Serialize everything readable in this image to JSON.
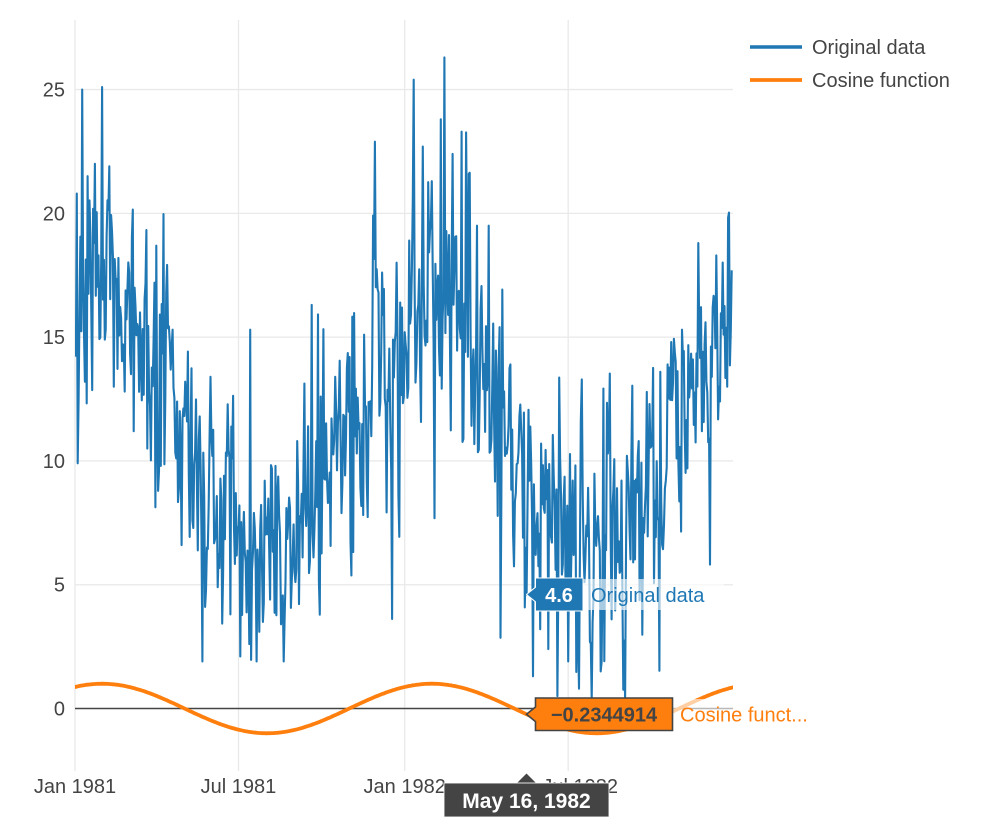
{
  "style": {
    "background": "#ffffff",
    "grid_color": "#e9e9e9",
    "zero_line_color": "#444444",
    "axis_text_color": "#444444",
    "hover_name_bg": "rgba(255,255,255,0.62)"
  },
  "legend": {
    "position": "top-right",
    "items": [
      {
        "label": "Original data",
        "color": "#1f77b4"
      },
      {
        "label": "Cosine function",
        "color": "#ff7f0e"
      }
    ]
  },
  "chart_data": {
    "type": "line",
    "title": "",
    "xlabel": "",
    "ylabel": "",
    "grid": true,
    "x_tick_labels": [
      "Jan 1981",
      "Jul 1981",
      "Jan 1982",
      "Jul 1982"
    ],
    "y_ticks": [
      0,
      5,
      10,
      15,
      20,
      25
    ],
    "ylim": [
      -2.55,
      27.8
    ],
    "series": [
      {
        "name": "Original data",
        "color": "#1f77b4",
        "line_width": 2.1,
        "kind": "noisy-seasonal-daily",
        "generator": {
          "n_days": 728,
          "seasonal_mean": 11.3,
          "seasonal_amplitude": 5.0,
          "seasonal_peak_day": 25,
          "period_days": 365,
          "ar_coeff": 0.45,
          "noise_sd": 2.1,
          "spike_prob": 0.05,
          "spike_min": 3.0,
          "spike_max": 7.0,
          "dip_prob": 0.045,
          "dip_min": 2.5,
          "dip_max": 6.0,
          "clamp_min_first_winter": 1.9,
          "first_winter_end_day": 330,
          "clamp_min": 0.35,
          "clamp_max": 26.4,
          "seed": 7
        },
        "key_points": [
          [
            0,
            14.8
          ],
          [
            2,
            20.8
          ],
          [
            5,
            16.2
          ],
          [
            8,
            25.0
          ],
          [
            11,
            13.2
          ],
          [
            14,
            21.5
          ],
          [
            18,
            16.0
          ],
          [
            22,
            22.0
          ],
          [
            26,
            18.3
          ],
          [
            30,
            25.1
          ],
          [
            33,
            14.9
          ],
          [
            38,
            21.9
          ],
          [
            43,
            13.0
          ],
          [
            48,
            18.2
          ],
          [
            55,
            12.8
          ],
          [
            60,
            17.6
          ],
          [
            65,
            11.2
          ],
          [
            72,
            16.0
          ],
          [
            80,
            10.5
          ],
          [
            88,
            17.2
          ],
          [
            95,
            9.8
          ],
          [
            100,
            12.5
          ],
          [
            108,
            15.3
          ],
          [
            115,
            8.9
          ],
          [
            122,
            13.2
          ],
          [
            130,
            7.6
          ],
          [
            138,
            11.8
          ],
          [
            146,
            6.5
          ],
          [
            152,
            10.2
          ],
          [
            158,
            4.9
          ],
          [
            165,
            9.4
          ],
          [
            172,
            3.8
          ],
          [
            178,
            8.7
          ],
          [
            183,
            2.1
          ],
          [
            188,
            6.3
          ],
          [
            193,
            2.6
          ],
          [
            198,
            7.9
          ],
          [
            204,
            3.1
          ],
          [
            210,
            9.2
          ],
          [
            216,
            4.4
          ],
          [
            222,
            9.8
          ],
          [
            228,
            3.4
          ],
          [
            234,
            8.1
          ],
          [
            240,
            5.2
          ],
          [
            246,
            10.8
          ],
          [
            252,
            6.1
          ],
          [
            258,
            11.4
          ],
          [
            265,
            7.2
          ],
          [
            272,
            12.6
          ],
          [
            280,
            8.3
          ],
          [
            288,
            13.4
          ],
          [
            296,
            9.1
          ],
          [
            304,
            14.2
          ],
          [
            312,
            10.3
          ],
          [
            320,
            15.1
          ],
          [
            328,
            11.0
          ],
          [
            336,
            16.8
          ],
          [
            344,
            12.2
          ],
          [
            352,
            14.9
          ],
          [
            360,
            16.4
          ],
          [
            365,
            15.2
          ],
          [
            370,
            18.9
          ],
          [
            375,
            25.4
          ],
          [
            380,
            16.3
          ],
          [
            385,
            22.7
          ],
          [
            390,
            14.8
          ],
          [
            395,
            21.3
          ],
          [
            400,
            15.7
          ],
          [
            405,
            23.8
          ],
          [
            409,
            26.3
          ],
          [
            413,
            15.9
          ],
          [
            418,
            22.4
          ],
          [
            424,
            16.8
          ],
          [
            428,
            23.3
          ],
          [
            432,
            14.4
          ],
          [
            436,
            21.6
          ],
          [
            440,
            13.7
          ],
          [
            445,
            19.5
          ],
          [
            452,
            12.9
          ],
          [
            458,
            19.5
          ],
          [
            464,
            11.6
          ],
          [
            470,
            15.4
          ],
          [
            476,
            10.2
          ],
          [
            482,
            13.9
          ],
          [
            488,
            8.7
          ],
          [
            492,
            11.8
          ],
          [
            496,
            6.9
          ],
          [
            500,
            4.6
          ],
          [
            503,
            9.2
          ],
          [
            507,
            1.3
          ],
          [
            511,
            7.4
          ],
          [
            515,
            3.2
          ],
          [
            519,
            8.1
          ],
          [
            524,
            2.4
          ],
          [
            528,
            6.7
          ],
          [
            534,
            0.5
          ],
          [
            540,
            5.8
          ],
          [
            546,
            1.9
          ],
          [
            552,
            6.2
          ],
          [
            558,
            0.8
          ],
          [
            564,
            5.1
          ],
          [
            570,
            2.7
          ],
          [
            576,
            7.3
          ],
          [
            582,
            1.5
          ],
          [
            588,
            6.4
          ],
          [
            594,
            3.6
          ],
          [
            600,
            8.9
          ],
          [
            606,
            4.7
          ],
          [
            612,
            9.6
          ],
          [
            618,
            5.9
          ],
          [
            624,
            10.8
          ],
          [
            630,
            7.1
          ],
          [
            636,
            12.3
          ],
          [
            642,
            8.4
          ],
          [
            648,
            13.6
          ],
          [
            654,
            9.2
          ],
          [
            660,
            14.8
          ],
          [
            666,
            10.1
          ],
          [
            672,
            15.3
          ],
          [
            678,
            9.7
          ],
          [
            684,
            14.1
          ],
          [
            690,
            18.8
          ],
          [
            694,
            11.2
          ],
          [
            698,
            15.6
          ],
          [
            702,
            10.9
          ],
          [
            706,
            16.2
          ],
          [
            710,
            18.3
          ],
          [
            714,
            12.4
          ],
          [
            718,
            15.1
          ],
          [
            722,
            13.0
          ],
          [
            727,
            17.7
          ]
        ]
      },
      {
        "name": "Cosine function",
        "color": "#ff7f0e",
        "line_width": 3.8,
        "kind": "cosine",
        "amplitude": 1,
        "period_days": 365,
        "peak_day": 30,
        "n_days": 728
      }
    ]
  },
  "tooltips": {
    "point": {
      "day": 500,
      "series": [
        {
          "name": "Original data",
          "display_name": "Original data",
          "value": 4.6,
          "value_label": "4.6",
          "box_color": "#1f77b4",
          "value_text_color": "#ffffff",
          "border_color": "#ffffff"
        },
        {
          "name": "Cosine function",
          "display_name": "Cosine funct...",
          "value": -0.2344914,
          "value_label": "−0.2344914",
          "box_color": "#ff7f0e",
          "value_text_color": "#444444",
          "border_color": "#444444"
        }
      ]
    },
    "axis": {
      "label": "May 16, 1982",
      "bg": "#444444",
      "text_color": "#ffffff"
    }
  }
}
